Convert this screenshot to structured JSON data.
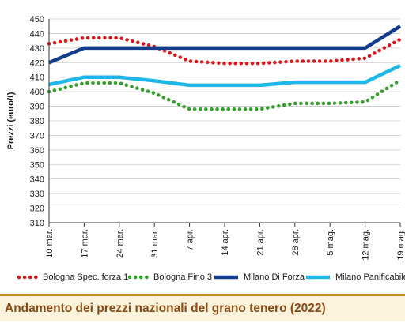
{
  "chart_data": {
    "type": "line",
    "ylabel": "Prezzi (euro/t)",
    "xlabel": "",
    "ylim": [
      310,
      450
    ],
    "yticks": [
      310,
      320,
      330,
      340,
      350,
      360,
      370,
      380,
      390,
      400,
      410,
      420,
      430,
      440,
      450
    ],
    "categories": [
      "10 mar.",
      "17 mar.",
      "24 mar.",
      "31 mar.",
      "7 apr.",
      "14 apr.",
      "21 apr.",
      "28 apr.",
      "5 mag.",
      "12 mag.",
      "19 mag."
    ],
    "grid": "horizontal",
    "legend_position": "bottom",
    "series": [
      {
        "name": "Bologna Spec. forza 1",
        "color": "#d7191c",
        "style": "dotted",
        "values": [
          433,
          437,
          437,
          431,
          421,
          419.5,
          419.5,
          421,
          421,
          423,
          436
        ]
      },
      {
        "name": "Bologna Fino 3",
        "color": "#33a02c",
        "style": "dotted",
        "values": [
          400,
          406,
          406,
          399,
          388,
          388,
          388,
          392,
          392,
          393,
          408
        ]
      },
      {
        "name": "Milano Di Forza",
        "color": "#143c8c",
        "style": "solid",
        "values": [
          420,
          430,
          430,
          430,
          430,
          430,
          430,
          430,
          430,
          430,
          445
        ]
      },
      {
        "name": "Milano Panificabile",
        "color": "#1fb6e8",
        "style": "solid",
        "values": [
          405,
          410,
          410,
          407.5,
          404.5,
          404.5,
          404.5,
          406.5,
          406.5,
          406.5,
          418
        ]
      }
    ]
  },
  "caption": "Andamento dei prezzi nazionali del grano tenero (2022)"
}
